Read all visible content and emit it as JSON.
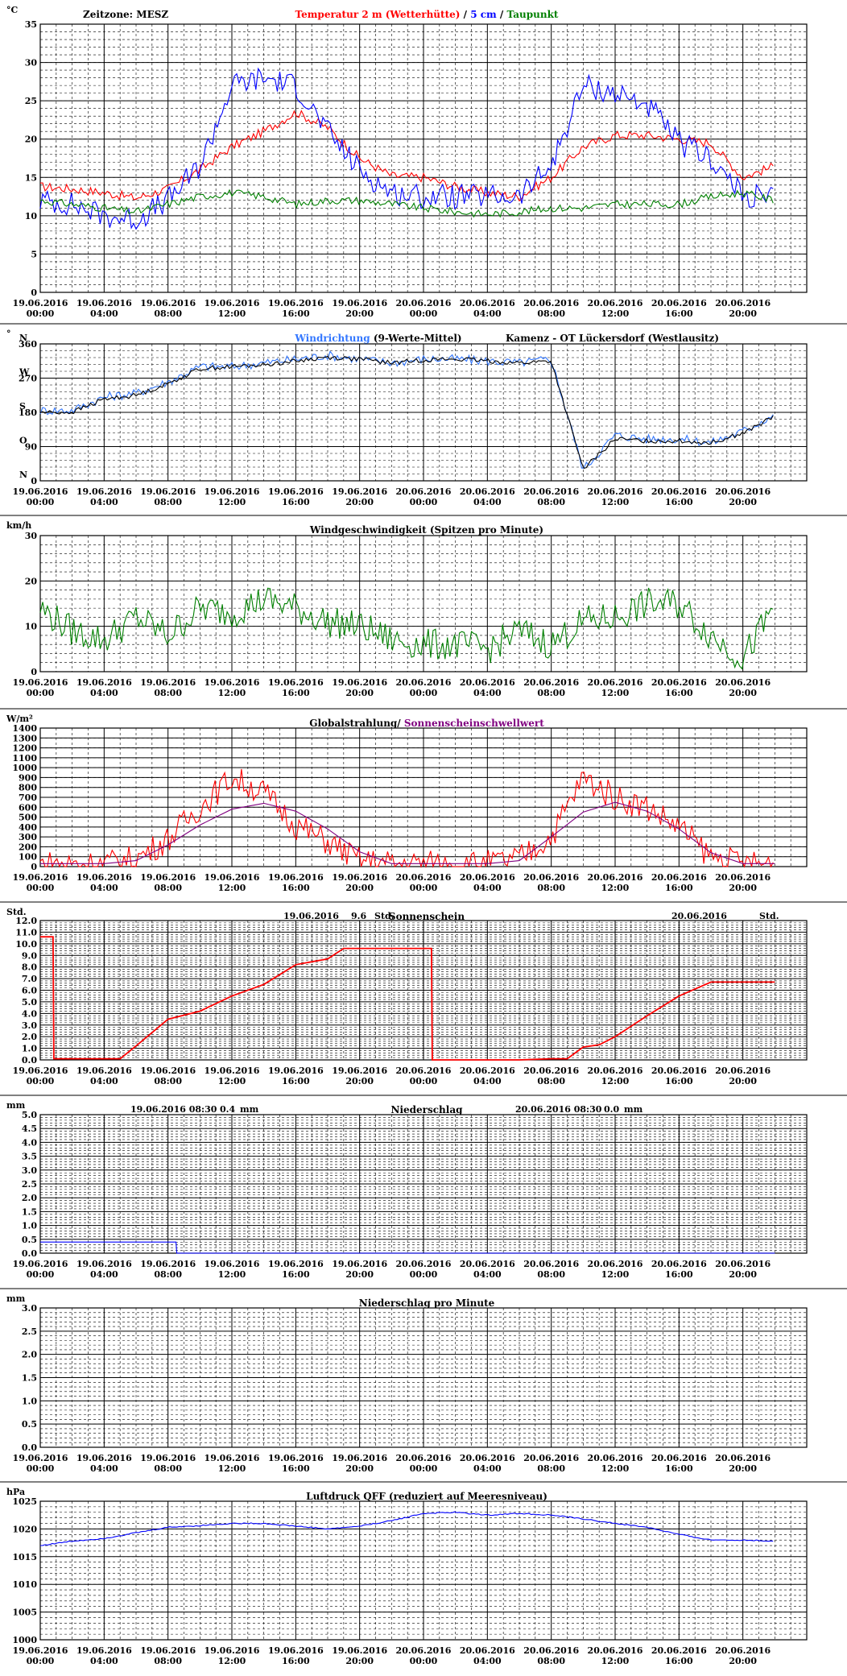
{
  "x_ticks": [
    {
      "date": "19.06.2016",
      "time": "00:00"
    },
    {
      "date": "19.06.2016",
      "time": "04:00"
    },
    {
      "date": "19.06.2016",
      "time": "08:00"
    },
    {
      "date": "19.06.2016",
      "time": "12:00"
    },
    {
      "date": "19.06.2016",
      "time": "16:00"
    },
    {
      "date": "19.06.2016",
      "time": "20:00"
    },
    {
      "date": "20.06.2016",
      "time": "00:00"
    },
    {
      "date": "20.06.2016",
      "time": "04:00"
    },
    {
      "date": "20.06.2016",
      "time": "08:00"
    },
    {
      "date": "20.06.2016",
      "time": "12:00"
    },
    {
      "date": "20.06.2016",
      "time": "16:00"
    },
    {
      "date": "20.06.2016",
      "time": "20:00"
    }
  ],
  "colors": {
    "red": "#ff0000",
    "blue": "#0000ff",
    "green": "#008000",
    "lightblue": "#3377ff",
    "black": "#000000",
    "purple": "#800080",
    "navy": "#000080"
  },
  "chart_data": [
    {
      "id": "temperature",
      "type": "line",
      "unit": "°C",
      "ylim": [
        0,
        35
      ],
      "yticks": [
        0,
        5,
        10,
        15,
        20,
        25,
        30,
        35
      ],
      "timezone": "Zeitzone: MESZ",
      "title_parts": [
        {
          "text": "Temperatur 2 m (Wetterhütte)",
          "color": "#ff0000"
        },
        {
          "text": " / ",
          "color": "#000000"
        },
        {
          "text": "5 cm",
          "color": "#0000ff"
        },
        {
          "text": " / ",
          "color": "#000000"
        },
        {
          "text": "Taupunkt",
          "color": "#008000"
        }
      ],
      "x_hours": [
        0,
        2,
        4,
        6,
        8,
        10,
        12,
        14,
        16,
        18,
        20,
        22,
        24,
        26,
        28,
        30,
        32,
        34,
        36,
        38,
        40,
        42,
        44,
        46
      ],
      "series": [
        {
          "name": "Temperatur 2 m (Wetterhütte)",
          "color": "#ff0000",
          "values": [
            13.8,
            13.5,
            13.0,
            12.3,
            13.5,
            16.0,
            19.0,
            21.0,
            23.5,
            21.5,
            17.5,
            15.2,
            15.0,
            13.8,
            13.0,
            12.5,
            15.0,
            19.0,
            20.5,
            20.5,
            20.0,
            19.5,
            15.0,
            16.5
          ]
        },
        {
          "name": "5 cm",
          "color": "#0000ff",
          "values": [
            12.0,
            11.5,
            10.0,
            9.5,
            12.0,
            16.5,
            27.0,
            28.0,
            27.0,
            21.0,
            16.0,
            13.0,
            12.5,
            12.5,
            12.5,
            12.5,
            16.5,
            27.0,
            26.0,
            24.5,
            19.5,
            17.5,
            12.5,
            12.5
          ]
        },
        {
          "name": "Taupunkt",
          "color": "#008000",
          "values": [
            12.0,
            11.5,
            11.0,
            10.5,
            11.5,
            12.5,
            13.0,
            12.5,
            11.5,
            12.0,
            12.0,
            11.5,
            11.0,
            10.5,
            10.2,
            10.5,
            11.0,
            11.0,
            11.5,
            11.5,
            11.5,
            12.5,
            13.0,
            12.0
          ]
        }
      ]
    },
    {
      "id": "wind_direction",
      "type": "scatter",
      "unit": "°",
      "ylim": [
        0,
        360
      ],
      "yticks": [
        0,
        90,
        180,
        270,
        360
      ],
      "compass_labels": [
        {
          "value": 0,
          "label": "N"
        },
        {
          "value": 90,
          "label": "O"
        },
        {
          "value": 180,
          "label": "S"
        },
        {
          "value": 270,
          "label": "W"
        },
        {
          "value": 360,
          "label": "N"
        }
      ],
      "title_parts": [
        {
          "text": "Windrichtung",
          "color": "#3377ff"
        },
        {
          "text": " (9-Werte-Mittel)",
          "color": "#000000"
        }
      ],
      "station": "Kamenz - OT Lückersdorf (Westlausitz)",
      "x_hours": [
        0,
        2,
        4,
        6,
        8,
        10,
        12,
        14,
        16,
        18,
        20,
        22,
        24,
        26,
        28,
        30,
        32,
        34,
        36,
        38,
        40,
        42,
        44,
        46
      ],
      "series": [
        {
          "name": "Windrichtung",
          "color": "#3377ff",
          "values": [
            185,
            185,
            220,
            230,
            260,
            300,
            300,
            310,
            320,
            330,
            320,
            310,
            320,
            320,
            315,
            310,
            320,
            30,
            120,
            110,
            110,
            100,
            130,
            175
          ]
        },
        {
          "name": "9-Werte-Mittel",
          "color": "#000000",
          "values": [
            180,
            180,
            215,
            225,
            255,
            295,
            300,
            305,
            315,
            325,
            320,
            310,
            318,
            320,
            315,
            310,
            315,
            30,
            110,
            105,
            105,
            100,
            125,
            170
          ]
        }
      ]
    },
    {
      "id": "wind_speed",
      "type": "line",
      "unit": "km/h",
      "ylim": [
        0,
        30
      ],
      "yticks": [
        0,
        10,
        20,
        30
      ],
      "title_parts": [
        {
          "text": "Windgeschwindigkeit (Spitzen pro Minute)",
          "color": "#000000"
        }
      ],
      "x_hours": [
        0,
        2,
        4,
        6,
        8,
        10,
        12,
        14,
        16,
        18,
        20,
        22,
        24,
        26,
        28,
        30,
        32,
        34,
        36,
        38,
        40,
        42,
        44,
        46
      ],
      "series": [
        {
          "name": "Windgeschwindigkeit",
          "color": "#008000",
          "values": [
            14,
            9,
            7,
            12,
            8,
            14,
            13,
            16,
            14,
            11,
            10,
            7,
            6,
            6,
            5,
            9,
            6,
            11,
            12,
            15,
            15,
            8,
            3,
            14
          ]
        }
      ]
    },
    {
      "id": "radiation",
      "type": "line",
      "unit": "W/m²",
      "ylim": [
        0,
        1400
      ],
      "yticks": [
        0,
        100,
        200,
        300,
        400,
        500,
        600,
        700,
        800,
        900,
        1000,
        1100,
        1200,
        1300,
        1400
      ],
      "title_parts": [
        {
          "text": "Globalstrahlung/",
          "color": "#000000"
        },
        {
          "text": " Sonnenscheinschwellwert",
          "color": "#800080"
        }
      ],
      "x_hours": [
        0,
        2,
        4,
        6,
        8,
        10,
        12,
        14,
        16,
        18,
        20,
        22,
        24,
        26,
        28,
        30,
        32,
        34,
        36,
        38,
        40,
        42,
        44,
        46
      ],
      "series": [
        {
          "name": "Globalstrahlung",
          "color": "#ff0000",
          "values": [
            30,
            30,
            30,
            80,
            280,
            600,
            900,
            750,
            420,
            250,
            60,
            30,
            30,
            30,
            30,
            80,
            300,
            900,
            700,
            600,
            400,
            100,
            30,
            30
          ]
        },
        {
          "name": "Sonnenscheinschwellwert",
          "color": "#800080",
          "values": [
            30,
            30,
            30,
            60,
            220,
            420,
            580,
            640,
            560,
            380,
            150,
            30,
            30,
            30,
            30,
            60,
            300,
            550,
            650,
            560,
            380,
            140,
            30,
            30
          ]
        }
      ]
    },
    {
      "id": "sunshine",
      "type": "line",
      "unit": "Std.",
      "ylim": [
        0,
        12
      ],
      "yticks": [
        0,
        1,
        2,
        3,
        4,
        5,
        6,
        7,
        8,
        9,
        10,
        11,
        12
      ],
      "title_parts": [
        {
          "text": "Sonnenschein",
          "color": "#000000"
        }
      ],
      "day_totals": [
        {
          "date": "19.06.2016",
          "value": "9.6",
          "unit": "Std."
        },
        {
          "date": "20.06.2016",
          "value": "",
          "unit": "Std."
        }
      ],
      "x_hours": [
        0,
        0.8,
        0.85,
        5,
        6,
        8,
        10,
        12,
        14,
        16,
        18,
        19,
        20,
        22,
        24.5,
        24.55,
        26,
        30,
        32,
        33,
        34,
        35,
        36,
        38,
        40,
        42,
        44,
        46
      ],
      "series": [
        {
          "name": "Sonnenschein",
          "color": "#ff0000",
          "values": [
            10.6,
            10.6,
            0.1,
            0.1,
            1.2,
            3.5,
            4.2,
            5.5,
            6.5,
            8.2,
            8.7,
            9.6,
            9.6,
            9.6,
            9.6,
            0.0,
            0.0,
            0.0,
            0.1,
            0.1,
            1.1,
            1.3,
            2.0,
            3.8,
            5.5,
            6.7,
            6.7,
            6.7
          ]
        }
      ]
    },
    {
      "id": "precipitation",
      "type": "line",
      "unit": "mm",
      "ylim": [
        0,
        5
      ],
      "yticks": [
        0,
        0.5,
        1.0,
        1.5,
        2.0,
        2.5,
        3.0,
        3.5,
        4.0,
        4.5,
        5.0
      ],
      "title_parts": [
        {
          "text": "Niederschlag",
          "color": "#000000"
        }
      ],
      "period_totals": [
        {
          "date": "19.06.2016 08:30",
          "value": "0.4",
          "unit": "mm"
        },
        {
          "date": "20.06.2016 08:30",
          "value": "0.0",
          "unit": "mm"
        }
      ],
      "x_hours": [
        0,
        8.5,
        8.55,
        46
      ],
      "series": [
        {
          "name": "Niederschlag",
          "color": "#0000ff",
          "values": [
            0.4,
            0.4,
            0.0,
            0.0
          ]
        }
      ]
    },
    {
      "id": "precipitation_minute",
      "type": "line",
      "unit": "mm",
      "ylim": [
        0,
        3
      ],
      "yticks": [
        0,
        0.5,
        1.0,
        1.5,
        2.0,
        2.5,
        3.0
      ],
      "title_parts": [
        {
          "text": "Niederschlag pro Minute",
          "color": "#000000"
        }
      ],
      "x_hours": [],
      "series": []
    },
    {
      "id": "pressure",
      "type": "line",
      "unit": "hPa",
      "ylim": [
        1000,
        1025
      ],
      "yticks": [
        1000,
        1005,
        1010,
        1015,
        1020,
        1025
      ],
      "title_parts": [
        {
          "text": "Luftdruck QFF (reduziert auf Meeresniveau)",
          "color": "#000000"
        }
      ],
      "x_hours": [
        0,
        2,
        4,
        6,
        8,
        10,
        12,
        14,
        16,
        18,
        20,
        22,
        24,
        26,
        28,
        30,
        32,
        34,
        36,
        38,
        40,
        42,
        44,
        46
      ],
      "series": [
        {
          "name": "Luftdruck QFF",
          "color": "#0000ff",
          "values": [
            1017,
            1017.8,
            1018.3,
            1019.3,
            1020.3,
            1020.6,
            1021,
            1021,
            1020.5,
            1020,
            1020.5,
            1021.5,
            1022.8,
            1023,
            1022.5,
            1022.8,
            1022.5,
            1021.8,
            1021,
            1020.3,
            1019,
            1018,
            1018,
            1017.8
          ]
        }
      ]
    }
  ]
}
